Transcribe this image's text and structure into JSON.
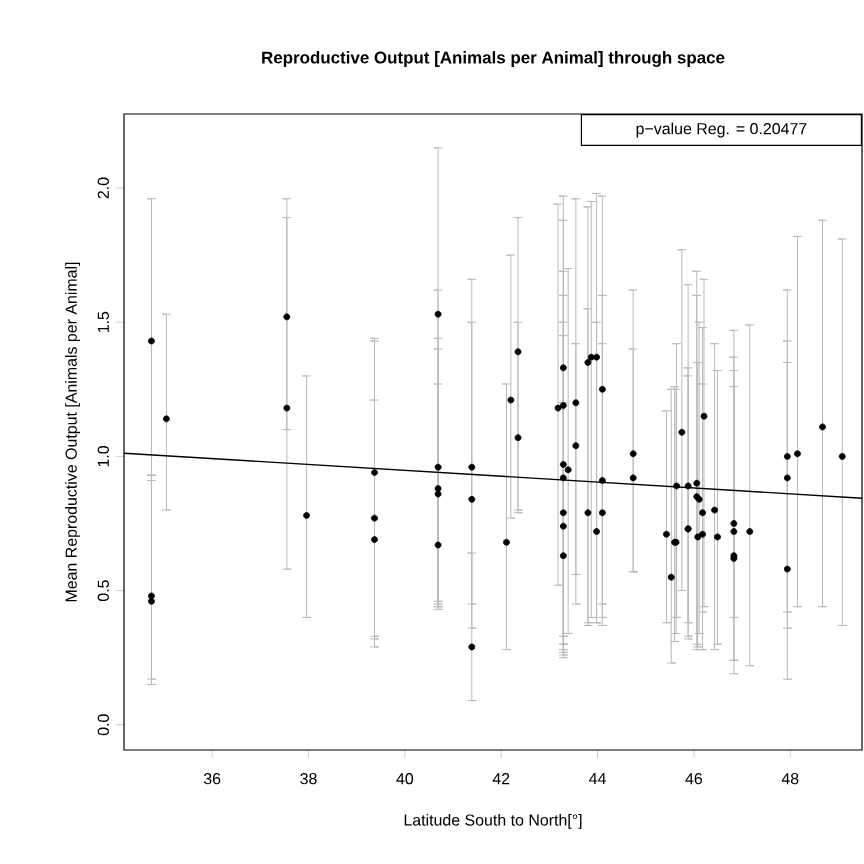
{
  "chart_data": {
    "type": "scatter",
    "title": "Reproductive Output [Animals per Animal] through space",
    "xlabel": "Latitude South to North[°]",
    "ylabel": "Mean Reproductive Output [Animals per Animal]",
    "annotations": [
      "p−value Reg. =  0.20477"
    ],
    "xlim": [
      34.17,
      49.49
    ],
    "ylim": [
      -0.094,
      2.276
    ],
    "xticks": [
      36,
      38,
      40,
      42,
      44,
      46,
      48
    ],
    "yticks": [
      {
        "value": 0,
        "label": "0.0"
      },
      {
        "value": 0.5,
        "label": "0.5"
      },
      {
        "value": 1,
        "label": "1.0"
      },
      {
        "value": 1.5,
        "label": "1.5"
      },
      {
        "value": 2,
        "label": "2.0"
      }
    ],
    "series": [
      {
        "type": "scatter",
        "marker": "circle",
        "color": "#000000",
        "x": [
          34.74,
          34.74,
          34.74,
          35.05,
          37.55,
          37.55,
          37.96,
          39.37,
          39.37,
          39.37,
          40.69,
          40.69,
          40.69,
          40.69,
          40.69,
          41.39,
          41.39,
          41.39,
          42.11,
          42.2,
          42.35,
          42.35,
          43.18,
          43.29,
          43.29,
          43.29,
          43.39,
          43.29,
          43.29,
          43.29,
          43.29,
          43.55,
          43.55,
          43.8,
          43.87,
          43.98,
          43.8,
          43.98,
          44.1,
          44.1,
          44.1,
          44.74,
          44.74,
          45.43,
          45.53,
          45.6,
          45.63,
          45.64,
          45.75,
          45.88,
          45.88,
          45.88,
          46.06,
          46.06,
          46.11,
          46.08,
          46.18,
          46.18,
          46.21,
          46.43,
          46.49,
          46.83,
          46.83,
          46.83,
          46.83,
          47.16,
          47.94,
          47.94,
          47.94,
          48.15,
          48.67,
          49.08
        ],
        "values": [
          1.43,
          0.48,
          0.46,
          1.14,
          1.52,
          1.18,
          0.78,
          0.94,
          0.77,
          0.69,
          1.53,
          0.96,
          0.88,
          0.86,
          0.67,
          0.96,
          0.84,
          0.29,
          0.68,
          1.21,
          1.39,
          1.07,
          1.18,
          1.33,
          1.19,
          0.97,
          0.95,
          0.92,
          0.79,
          0.74,
          0.63,
          1.04,
          1.2,
          1.35,
          1.37,
          1.37,
          0.79,
          0.72,
          1.25,
          0.91,
          0.79,
          1.01,
          0.92,
          0.71,
          0.55,
          0.68,
          0.68,
          0.89,
          1.09,
          0.89,
          0.73,
          0.73,
          0.9,
          0.85,
          0.84,
          0.7,
          0.79,
          0.71,
          1.15,
          0.8,
          0.7,
          0.75,
          0.72,
          0.63,
          0.62,
          0.72,
          1.0,
          0.92,
          0.58,
          1.01,
          1.11,
          1.0
        ],
        "errors": [
          [
            0.93,
            1.96
          ],
          [
            0.17,
            0.93
          ],
          [
            0.15,
            0.91
          ],
          [
            0.8,
            1.53
          ],
          [
            1.1,
            1.89
          ],
          [
            0.58,
            1.96
          ],
          [
            0.4,
            1.3
          ],
          [
            0.29,
            1.44
          ],
          [
            0.33,
            1.21
          ],
          [
            0.32,
            1.43
          ],
          [
            0.44,
            2.15
          ],
          [
            0.46,
            1.62
          ],
          [
            0.45,
            1.44
          ],
          [
            0.43,
            1.4
          ],
          [
            0.44,
            1.27
          ],
          [
            0.36,
            1.5
          ],
          [
            0.45,
            1.66
          ],
          [
            0.09,
            0.64
          ],
          [
            0.28,
            1.27
          ],
          [
            0.77,
            1.75
          ],
          [
            0.8,
            1.89
          ],
          [
            0.79,
            1.5
          ],
          [
            0.52,
            1.94
          ],
          [
            0.26,
            1.97
          ],
          [
            0.3,
            1.88
          ],
          [
            0.25,
            1.69
          ],
          [
            0.34,
            1.7
          ],
          [
            0.28,
            1.6
          ],
          [
            0.3,
            1.5
          ],
          [
            0.27,
            1.45
          ],
          [
            0.33,
            1.2
          ],
          [
            0.56,
            1.42
          ],
          [
            0.45,
            1.96
          ],
          [
            0.37,
            1.93
          ],
          [
            0.4,
            1.95
          ],
          [
            0.38,
            1.98
          ],
          [
            0.38,
            1.55
          ],
          [
            0.38,
            1.5
          ],
          [
            0.37,
            1.97
          ],
          [
            0.45,
            1.6
          ],
          [
            0.4,
            1.42
          ],
          [
            0.57,
            1.62
          ],
          [
            0.57,
            1.4
          ],
          [
            0.38,
            1.17
          ],
          [
            0.23,
            1.25
          ],
          [
            0.31,
            1.26
          ],
          [
            0.34,
            1.25
          ],
          [
            0.4,
            1.42
          ],
          [
            0.5,
            1.77
          ],
          [
            0.38,
            1.64
          ],
          [
            0.33,
            1.3
          ],
          [
            0.32,
            1.33
          ],
          [
            0.3,
            1.69
          ],
          [
            0.28,
            1.6
          ],
          [
            0.34,
            1.5
          ],
          [
            0.29,
            1.35
          ],
          [
            0.28,
            1.48
          ],
          [
            0.42,
            1.27
          ],
          [
            0.44,
            1.66
          ],
          [
            0.28,
            1.42
          ],
          [
            0.3,
            1.32
          ],
          [
            0.19,
            1.47
          ],
          [
            0.24,
            1.37
          ],
          [
            0.4,
            1.26
          ],
          [
            0.24,
            1.32
          ],
          [
            0.22,
            1.49
          ],
          [
            0.36,
            1.62
          ],
          [
            0.42,
            1.43
          ],
          [
            0.17,
            1.35
          ],
          [
            0.44,
            1.82
          ],
          [
            0.44,
            1.88
          ],
          [
            0.37,
            1.81
          ]
        ]
      },
      {
        "type": "line",
        "color": "#000000",
        "marker": "none",
        "x": [
          34.17,
          49.49
        ],
        "values": [
          1.012,
          0.844
        ]
      }
    ]
  }
}
